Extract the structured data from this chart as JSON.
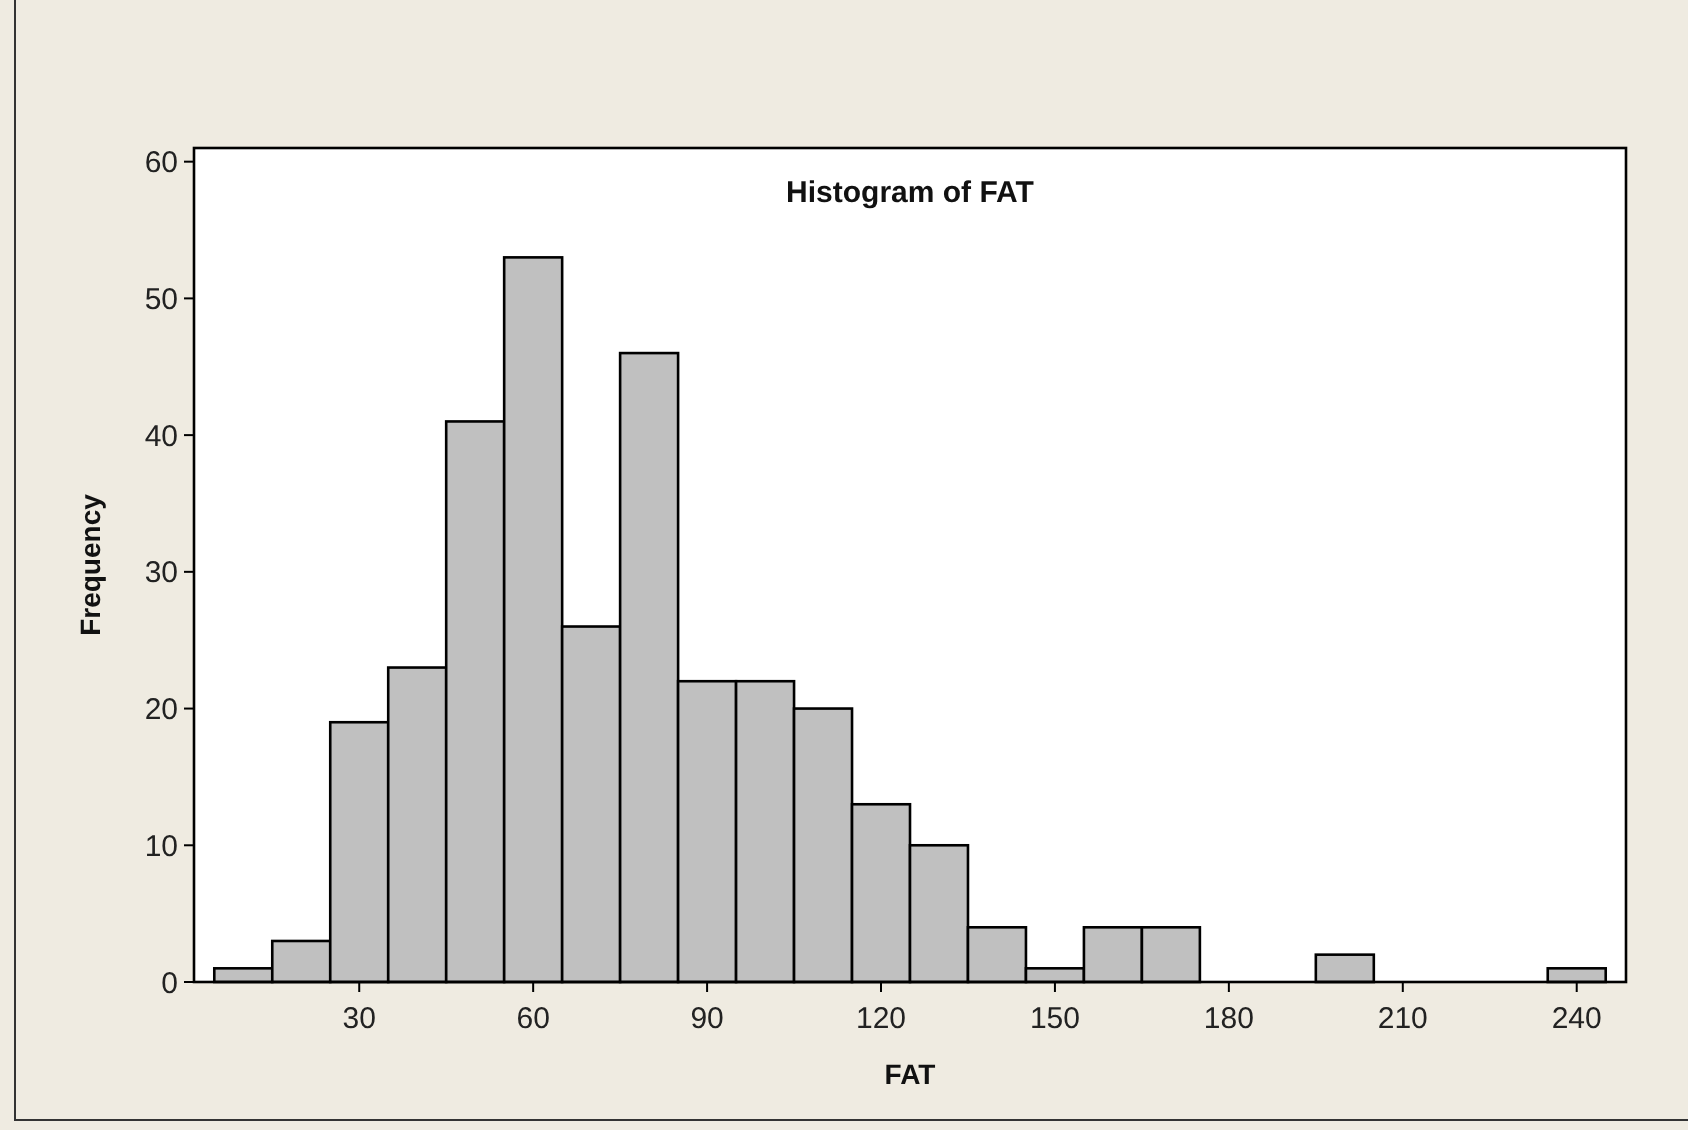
{
  "chart_data": {
    "type": "histogram",
    "title": "Histogram of FAT",
    "xlabel": "FAT",
    "ylabel": "Frequency",
    "bins": [
      5,
      15,
      25,
      35,
      45,
      55,
      65,
      75,
      85,
      95,
      105,
      115,
      125,
      135,
      145,
      155,
      165,
      175,
      185,
      195,
      205,
      215,
      225,
      235,
      245
    ],
    "values": [
      1,
      3,
      19,
      23,
      41,
      53,
      26,
      46,
      22,
      22,
      20,
      13,
      10,
      4,
      1,
      4,
      4,
      0,
      0,
      2,
      0,
      0,
      0,
      1
    ],
    "color": "#c0c0c0",
    "xlim": [
      1.5,
      248.5
    ],
    "xticks": [
      30,
      60,
      90,
      120,
      150,
      180,
      210,
      240
    ],
    "ylim": [
      0,
      61
    ],
    "yticks": [
      0,
      10,
      20,
      30,
      40,
      50,
      60
    ],
    "grid": false
  }
}
